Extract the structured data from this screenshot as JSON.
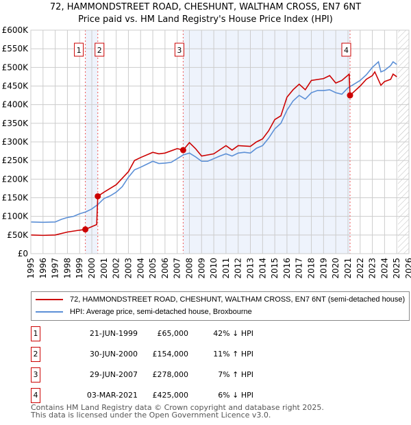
{
  "title": "72, HAMMONDSTREET ROAD, CHESHUNT, WALTHAM CROSS, EN7 6NT",
  "subtitle": "Price paid vs. HM Land Registry's House Price Index (HPI)",
  "legend": [
    {
      "label": "72, HAMMONDSTREET ROAD, CHESHUNT, WALTHAM CROSS, EN7 6NT (semi-detached house)",
      "color": "#cc0000"
    },
    {
      "label": "HPI: Average price, semi-detached house, Broxbourne",
      "color": "#5b8fd6"
    }
  ],
  "sales": [
    {
      "n": "1",
      "date": "21-JUN-1999",
      "price": "£65,000",
      "hpi": "42% ↓ HPI",
      "x": 1999.47,
      "y": 65
    },
    {
      "n": "2",
      "date": "30-JUN-2000",
      "price": "£154,000",
      "hpi": "11% ↑ HPI",
      "x": 2000.49,
      "y": 154
    },
    {
      "n": "3",
      "date": "29-JUN-2007",
      "price": "£278,000",
      "hpi": "7% ↑ HPI",
      "x": 2007.49,
      "y": 278
    },
    {
      "n": "4",
      "date": "03-MAR-2021",
      "price": "£425,000",
      "hpi": "6% ↓ HPI",
      "x": 2021.17,
      "y": 425
    }
  ],
  "footer": [
    "Contains HM Land Registry data © Crown copyright and database right 2025.",
    "This data is licensed under the Open Government Licence v3.0."
  ],
  "chart_data": {
    "type": "line",
    "xlim": [
      1995,
      2026
    ],
    "ylim": [
      0,
      600
    ],
    "yticks": [
      0,
      50,
      100,
      150,
      200,
      250,
      300,
      350,
      400,
      450,
      500,
      550,
      600
    ],
    "ytick_labels": [
      "£0",
      "£50K",
      "£100K",
      "£150K",
      "£200K",
      "£250K",
      "£300K",
      "£350K",
      "£400K",
      "£450K",
      "£500K",
      "£550K",
      "£600K"
    ],
    "xticks": [
      1995,
      1996,
      1997,
      1998,
      1999,
      2000,
      2001,
      2002,
      2003,
      2004,
      2005,
      2006,
      2007,
      2008,
      2009,
      2010,
      2011,
      2012,
      2013,
      2014,
      2015,
      2016,
      2017,
      2018,
      2019,
      2020,
      2021,
      2022,
      2023,
      2024,
      2025,
      2026
    ],
    "forecast_from": 2025.1,
    "series": [
      {
        "name": "HPI",
        "color": "#5b8fd6",
        "points": [
          [
            1995,
            85
          ],
          [
            1996,
            84
          ],
          [
            1997,
            85
          ],
          [
            1997.5,
            92
          ],
          [
            1998,
            97
          ],
          [
            1998.5,
            100
          ],
          [
            1999,
            107
          ],
          [
            1999.5,
            112
          ],
          [
            2000,
            120
          ],
          [
            2000.5,
            132
          ],
          [
            2001,
            148
          ],
          [
            2001.5,
            155
          ],
          [
            2002,
            165
          ],
          [
            2002.5,
            180
          ],
          [
            2003,
            205
          ],
          [
            2003.5,
            225
          ],
          [
            2004,
            232
          ],
          [
            2004.5,
            240
          ],
          [
            2005,
            248
          ],
          [
            2005.5,
            242
          ],
          [
            2006,
            243
          ],
          [
            2006.5,
            245
          ],
          [
            2007,
            255
          ],
          [
            2007.5,
            265
          ],
          [
            2008,
            270
          ],
          [
            2008.5,
            260
          ],
          [
            2009,
            248
          ],
          [
            2009.5,
            248
          ],
          [
            2010,
            255
          ],
          [
            2010.5,
            262
          ],
          [
            2011,
            268
          ],
          [
            2011.5,
            262
          ],
          [
            2012,
            270
          ],
          [
            2012.5,
            272
          ],
          [
            2013,
            270
          ],
          [
            2013.5,
            283
          ],
          [
            2014,
            290
          ],
          [
            2014.5,
            310
          ],
          [
            2015,
            335
          ],
          [
            2015.5,
            350
          ],
          [
            2016,
            385
          ],
          [
            2016.5,
            410
          ],
          [
            2017,
            425
          ],
          [
            2017.5,
            415
          ],
          [
            2018,
            432
          ],
          [
            2018.5,
            438
          ],
          [
            2019,
            438
          ],
          [
            2019.5,
            440
          ],
          [
            2020,
            432
          ],
          [
            2020.5,
            428
          ],
          [
            2021,
            445
          ],
          [
            2021.5,
            455
          ],
          [
            2022,
            465
          ],
          [
            2022.5,
            480
          ],
          [
            2023,
            500
          ],
          [
            2023.5,
            515
          ],
          [
            2023.7,
            488
          ],
          [
            2024,
            492
          ],
          [
            2024.5,
            505
          ],
          [
            2024.7,
            515
          ],
          [
            2025,
            508
          ]
        ]
      },
      {
        "name": "Price paid",
        "color": "#cc0000",
        "points": [
          [
            1995,
            50
          ],
          [
            1996,
            49
          ],
          [
            1997,
            50
          ],
          [
            1998,
            58
          ],
          [
            1999,
            63
          ],
          [
            1999.47,
            65
          ],
          [
            2000.4,
            78
          ],
          [
            2000.49,
            154
          ],
          [
            2001,
            165
          ],
          [
            2002,
            185
          ],
          [
            2003,
            220
          ],
          [
            2003.5,
            250
          ],
          [
            2004,
            258
          ],
          [
            2005,
            272
          ],
          [
            2005.5,
            268
          ],
          [
            2006,
            270
          ],
          [
            2007,
            282
          ],
          [
            2007.49,
            278
          ],
          [
            2008,
            298
          ],
          [
            2008.5,
            282
          ],
          [
            2009,
            262
          ],
          [
            2010,
            268
          ],
          [
            2011,
            290
          ],
          [
            2011.5,
            278
          ],
          [
            2012,
            290
          ],
          [
            2013,
            288
          ],
          [
            2013.5,
            300
          ],
          [
            2014,
            308
          ],
          [
            2014.5,
            330
          ],
          [
            2015,
            360
          ],
          [
            2015.5,
            370
          ],
          [
            2016,
            420
          ],
          [
            2016.5,
            440
          ],
          [
            2017,
            455
          ],
          [
            2017.5,
            440
          ],
          [
            2018,
            465
          ],
          [
            2019,
            470
          ],
          [
            2019.5,
            478
          ],
          [
            2020,
            458
          ],
          [
            2020.5,
            465
          ],
          [
            2021.1,
            482
          ],
          [
            2021.17,
            425
          ],
          [
            2021.5,
            435
          ],
          [
            2022,
            450
          ],
          [
            2022.5,
            468
          ],
          [
            2023,
            478
          ],
          [
            2023.2,
            488
          ],
          [
            2023.7,
            452
          ],
          [
            2024,
            462
          ],
          [
            2024.5,
            468
          ],
          [
            2024.7,
            482
          ],
          [
            2025,
            475
          ]
        ]
      }
    ]
  }
}
